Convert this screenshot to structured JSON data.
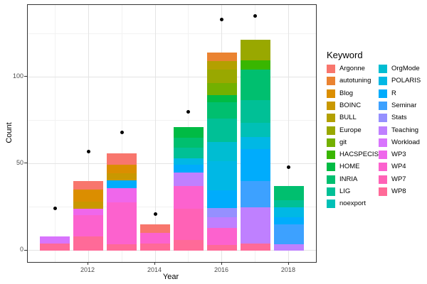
{
  "figure": {
    "y_axis_title": "Count",
    "x_axis_title": "Year"
  },
  "legend": {
    "title": "Keyword"
  },
  "chart_data": {
    "type": "bar",
    "stacked": true,
    "grid": true,
    "legend_position": "right",
    "xlabel": "Year",
    "ylabel": "Count",
    "x_range": [
      2010.19,
      2018.81
    ],
    "y_range": [
      -6.7,
      141.4
    ],
    "x_major_ticks": [
      2012,
      2014,
      2016,
      2018
    ],
    "x_minor_gridlines": [
      2011,
      2013,
      2015,
      2017
    ],
    "y_major_ticks": [
      0,
      50,
      100
    ],
    "y_minor_gridlines": [
      25,
      75,
      125
    ],
    "bar_width_years": 0.9,
    "keywords": [
      {
        "name": "Argonne",
        "color": "#F8766D"
      },
      {
        "name": "autotuning",
        "color": "#EA8331"
      },
      {
        "name": "Blog",
        "color": "#DB8E00"
      },
      {
        "name": "BOINC",
        "color": "#C99800"
      },
      {
        "name": "BULL",
        "color": "#B3A000"
      },
      {
        "name": "Europe",
        "color": "#99A800"
      },
      {
        "name": "git",
        "color": "#73B000"
      },
      {
        "name": "HACSPECIS",
        "color": "#39B600"
      },
      {
        "name": "HOME",
        "color": "#00BB44"
      },
      {
        "name": "INRIA",
        "color": "#00BF6F"
      },
      {
        "name": "LIG",
        "color": "#00C096"
      },
      {
        "name": "noexport",
        "color": "#00C0B6"
      },
      {
        "name": "OrgMode",
        "color": "#00BDD2"
      },
      {
        "name": "POLARIS",
        "color": "#00B8E5"
      },
      {
        "name": "R",
        "color": "#00ACFC"
      },
      {
        "name": "Seminar",
        "color": "#3DA1FF"
      },
      {
        "name": "Stats",
        "color": "#9590FF"
      },
      {
        "name": "Teaching",
        "color": "#BF80FF"
      },
      {
        "name": "Workload",
        "color": "#D874FD"
      },
      {
        "name": "WP3",
        "color": "#EF67EB"
      },
      {
        "name": "WP4",
        "color": "#FC62CE"
      },
      {
        "name": "WP7",
        "color": "#FF62B6"
      },
      {
        "name": "WP8",
        "color": "#FF6A98"
      }
    ],
    "bars": [
      {
        "year": 2011,
        "total": 8,
        "segments": [
          [
            "WP8",
            4
          ],
          [
            "Workload",
            4
          ]
        ]
      },
      {
        "year": 2012,
        "total": 40,
        "segments": [
          [
            "WP8",
            8
          ],
          [
            "WP4",
            12.5
          ],
          [
            "WP3",
            3.5
          ],
          [
            "BOINC",
            4
          ],
          [
            "Blog",
            7
          ],
          [
            "Argonne",
            5
          ]
        ]
      },
      {
        "year": 2013,
        "total": 56,
        "segments": [
          [
            "WP8",
            3.5
          ],
          [
            "WP4",
            24
          ],
          [
            "WP3",
            8.5
          ],
          [
            "R",
            4.5
          ],
          [
            "BOINC",
            4
          ],
          [
            "Blog",
            5
          ],
          [
            "Argonne",
            6.5
          ]
        ]
      },
      {
        "year": 2014,
        "total": 15,
        "segments": [
          [
            "WP8",
            4
          ],
          [
            "WP4",
            6
          ],
          [
            "Argonne",
            5
          ]
        ]
      },
      {
        "year": 2015,
        "total": 71,
        "segments": [
          [
            "WP8",
            6
          ],
          [
            "WP7",
            18
          ],
          [
            "WP4",
            13
          ],
          [
            "Teaching",
            8
          ],
          [
            "R",
            4.5
          ],
          [
            "POLARIS",
            3.5
          ],
          [
            "LIG",
            6
          ],
          [
            "INRIA",
            6
          ],
          [
            "HOME",
            6
          ]
        ]
      },
      {
        "year": 2016,
        "total": 114,
        "segments": [
          [
            "WP8",
            3
          ],
          [
            "WP4",
            10
          ],
          [
            "Teaching",
            6
          ],
          [
            "Stats",
            5.5
          ],
          [
            "R",
            10
          ],
          [
            "POLARIS",
            17
          ],
          [
            "OrgMode",
            11
          ],
          [
            "LIG",
            13.5
          ],
          [
            "INRIA",
            9.5
          ],
          [
            "HOME",
            4
          ],
          [
            "git",
            7
          ],
          [
            "Europe",
            7.5
          ],
          [
            "BULL",
            5
          ],
          [
            "autotuning",
            5
          ]
        ]
      },
      {
        "year": 2017,
        "total": 121.5,
        "segments": [
          [
            "WP8",
            4
          ],
          [
            "Teaching",
            21
          ],
          [
            "Seminar",
            15
          ],
          [
            "R",
            18.5
          ],
          [
            "POLARIS",
            7
          ],
          [
            "noexport",
            8
          ],
          [
            "LIG",
            13
          ],
          [
            "INRIA",
            17.5
          ],
          [
            "HACSPECIS",
            5.5
          ],
          [
            "Europe",
            12
          ]
        ]
      },
      {
        "year": 2018,
        "total": 37,
        "segments": [
          [
            "Teaching",
            3.5
          ],
          [
            "Seminar",
            11.5
          ],
          [
            "R",
            4
          ],
          [
            "POLARIS",
            6
          ],
          [
            "LIG",
            4
          ],
          [
            "INRIA",
            8
          ]
        ]
      }
    ],
    "points": [
      {
        "year": 2011,
        "count": 24
      },
      {
        "year": 2012,
        "count": 57
      },
      {
        "year": 2013,
        "count": 68
      },
      {
        "year": 2014,
        "count": 21
      },
      {
        "year": 2015,
        "count": 80
      },
      {
        "year": 2016,
        "count": 133
      },
      {
        "year": 2017,
        "count": 135
      },
      {
        "year": 2018,
        "count": 48
      }
    ]
  }
}
